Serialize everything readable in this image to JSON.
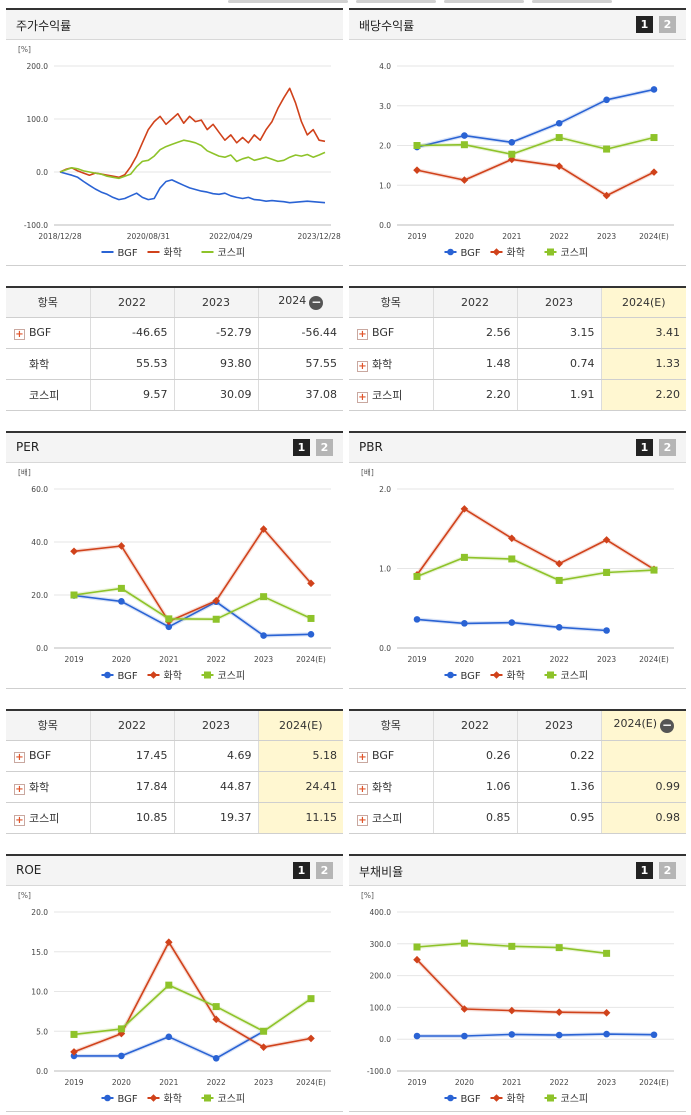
{
  "colors": {
    "BGF": "#2a63d4",
    "chem": "#d0421b",
    "kospi": "#8ec32a"
  },
  "legend": [
    "BGF",
    "화학",
    "코스피"
  ],
  "charts": [
    {
      "title": "주가수익률",
      "tabs": [],
      "chart_data": {
        "type": "line",
        "unit": "[%]",
        "ylim": [
          -100,
          200
        ],
        "yticks": [
          "200.0",
          "100.0",
          "0.0",
          "-100.0"
        ],
        "x_tick_labels": [
          "2018/12/28",
          "2020/08/31",
          "2022/04/29",
          "2023/12/28"
        ],
        "series": [
          {
            "name": "BGF",
            "values": [
              0,
              -3,
              -6,
              -10,
              -18,
              -25,
              -32,
              -38,
              -42,
              -48,
              -52,
              -50,
              -45,
              -40,
              -48,
              -52,
              -50,
              -30,
              -18,
              -15,
              -20,
              -25,
              -30,
              -33,
              -36,
              -38,
              -41,
              -42,
              -40,
              -45,
              -48,
              -50,
              -48,
              -52,
              -53,
              -55,
              -54,
              -55,
              -56,
              -58,
              -57,
              -56,
              -55,
              -56,
              -57,
              -58
            ]
          },
          {
            "name": "화학",
            "values": [
              0,
              5,
              8,
              2,
              -2,
              -6,
              -2,
              -4,
              -6,
              -8,
              -10,
              -5,
              10,
              30,
              55,
              80,
              95,
              105,
              90,
              100,
              110,
              92,
              105,
              95,
              98,
              80,
              90,
              75,
              60,
              70,
              55,
              65,
              55,
              70,
              60,
              80,
              95,
              120,
              140,
              158,
              130,
              95,
              70,
              80,
              60,
              58
            ]
          },
          {
            "name": "코스피",
            "values": [
              0,
              4,
              8,
              6,
              2,
              0,
              -2,
              -4,
              -8,
              -10,
              -12,
              -8,
              -4,
              10,
              20,
              22,
              30,
              42,
              48,
              52,
              56,
              60,
              58,
              55,
              50,
              40,
              35,
              30,
              28,
              32,
              20,
              25,
              28,
              22,
              25,
              28,
              24,
              20,
              22,
              28,
              32,
              30,
              33,
              28,
              32,
              37
            ]
          }
        ]
      }
    },
    {
      "title": "배당수익률",
      "tabs": [
        "1",
        "2"
      ],
      "chart_data": {
        "type": "line",
        "unit": "",
        "ylim": [
          0,
          4
        ],
        "yticks": [
          "4.0",
          "3.0",
          "2.0",
          "1.0",
          "0.0"
        ],
        "categories": [
          "2019",
          "2020",
          "2021",
          "2022",
          "2023",
          "2024(E)"
        ],
        "series": [
          {
            "name": "BGF",
            "values": [
              1.96,
              2.25,
              2.08,
              2.56,
              3.15,
              3.41
            ]
          },
          {
            "name": "화학",
            "values": [
              1.38,
              1.13,
              1.65,
              1.48,
              0.74,
              1.33
            ]
          },
          {
            "name": "코스피",
            "values": [
              2.0,
              2.02,
              1.78,
              2.2,
              1.91,
              2.2
            ]
          }
        ]
      }
    },
    {
      "title": "PER",
      "tabs": [
        "1",
        "2"
      ],
      "chart_data": {
        "type": "line",
        "unit": "[배]",
        "ylim": [
          0,
          60
        ],
        "yticks": [
          "60.0",
          "40.0",
          "20.0",
          "0.0"
        ],
        "categories": [
          "2019",
          "2020",
          "2021",
          "2022",
          "2023",
          "2024(E)"
        ],
        "series": [
          {
            "name": "BGF",
            "values": [
              19.8,
              17.6,
              8.0,
              17.45,
              4.69,
              5.18
            ]
          },
          {
            "name": "화학",
            "values": [
              36.5,
              38.5,
              10.0,
              17.84,
              44.87,
              24.41
            ]
          },
          {
            "name": "코스피",
            "values": [
              20.0,
              22.5,
              11.0,
              10.85,
              19.37,
              11.15
            ]
          }
        ]
      }
    },
    {
      "title": "PBR",
      "tabs": [
        "1",
        "2"
      ],
      "chart_data": {
        "type": "line",
        "unit": "[배]",
        "ylim": [
          0,
          2
        ],
        "yticks": [
          "2.0",
          "1.0",
          "0.0"
        ],
        "categories": [
          "2019",
          "2020",
          "2021",
          "2022",
          "2023",
          "2024(E)"
        ],
        "series": [
          {
            "name": "BGF",
            "values": [
              0.36,
              0.31,
              0.32,
              0.26,
              0.22,
              null
            ]
          },
          {
            "name": "화학",
            "values": [
              0.92,
              1.75,
              1.38,
              1.06,
              1.36,
              0.99
            ]
          },
          {
            "name": "코스피",
            "values": [
              0.9,
              1.14,
              1.12,
              0.85,
              0.95,
              0.98
            ]
          }
        ]
      }
    },
    {
      "title": "ROE",
      "tabs": [
        "1",
        "2"
      ],
      "chart_data": {
        "type": "line",
        "unit": "[%]",
        "ylim": [
          0,
          20
        ],
        "yticks": [
          "20.0",
          "15.0",
          "10.0",
          "5.0",
          "0.0"
        ],
        "categories": [
          "2019",
          "2020",
          "2021",
          "2022",
          "2023",
          "2024(E)"
        ],
        "series": [
          {
            "name": "BGF",
            "values": [
              1.9,
              1.9,
              4.3,
              1.6,
              5.0,
              null
            ]
          },
          {
            "name": "화학",
            "values": [
              2.4,
              4.7,
              16.2,
              6.5,
              3.0,
              4.1
            ]
          },
          {
            "name": "코스피",
            "values": [
              4.6,
              5.3,
              10.8,
              8.1,
              5.0,
              9.1
            ]
          }
        ]
      }
    },
    {
      "title": "부채비율",
      "tabs": [
        "1",
        "2"
      ],
      "chart_data": {
        "type": "line",
        "unit": "[%]",
        "ylim": [
          -100,
          400
        ],
        "yticks": [
          "400.0",
          "300.0",
          "200.0",
          "100.0",
          "0.0",
          "-100.0"
        ],
        "categories": [
          "2019",
          "2020",
          "2021",
          "2022",
          "2023",
          "2024(E)"
        ],
        "series": [
          {
            "name": "BGF",
            "values": [
              10,
              10,
              15,
              13,
              16,
              14
            ]
          },
          {
            "name": "화학",
            "values": [
              250,
              95,
              90,
              85,
              83,
              null
            ]
          },
          {
            "name": "코스피",
            "values": [
              290,
              302,
              292,
              288,
              270,
              null
            ]
          }
        ]
      }
    }
  ],
  "tables": [
    {
      "headers": [
        "항목",
        "2022",
        "2023",
        "2024"
      ],
      "header_minus": true,
      "hl_last": false,
      "rows": [
        {
          "label": "BGF",
          "plus": true,
          "values": [
            "-46.65",
            "-52.79",
            "-56.44"
          ]
        },
        {
          "label": "화학",
          "plus": false,
          "values": [
            "55.53",
            "93.80",
            "57.55"
          ]
        },
        {
          "label": "코스피",
          "plus": false,
          "values": [
            "9.57",
            "30.09",
            "37.08"
          ]
        }
      ]
    },
    {
      "headers": [
        "항목",
        "2022",
        "2023",
        "2024(E)"
      ],
      "header_minus": false,
      "hl_last": true,
      "rows": [
        {
          "label": "BGF",
          "plus": true,
          "values": [
            "2.56",
            "3.15",
            "3.41"
          ]
        },
        {
          "label": "화학",
          "plus": true,
          "values": [
            "1.48",
            "0.74",
            "1.33"
          ]
        },
        {
          "label": "코스피",
          "plus": true,
          "values": [
            "2.20",
            "1.91",
            "2.20"
          ]
        }
      ]
    },
    {
      "headers": [
        "항목",
        "2022",
        "2023",
        "2024(E)"
      ],
      "header_minus": false,
      "hl_last": true,
      "rows": [
        {
          "label": "BGF",
          "plus": true,
          "values": [
            "17.45",
            "4.69",
            "5.18"
          ]
        },
        {
          "label": "화학",
          "plus": true,
          "values": [
            "17.84",
            "44.87",
            "24.41"
          ]
        },
        {
          "label": "코스피",
          "plus": true,
          "values": [
            "10.85",
            "19.37",
            "11.15"
          ]
        }
      ]
    },
    {
      "headers": [
        "항목",
        "2022",
        "2023",
        "2024(E)"
      ],
      "header_minus": true,
      "hl_last": true,
      "rows": [
        {
          "label": "BGF",
          "plus": true,
          "values": [
            "0.26",
            "0.22",
            ""
          ]
        },
        {
          "label": "화학",
          "plus": true,
          "values": [
            "1.06",
            "1.36",
            "0.99"
          ]
        },
        {
          "label": "코스피",
          "plus": true,
          "values": [
            "0.85",
            "0.95",
            "0.98"
          ]
        }
      ]
    }
  ]
}
